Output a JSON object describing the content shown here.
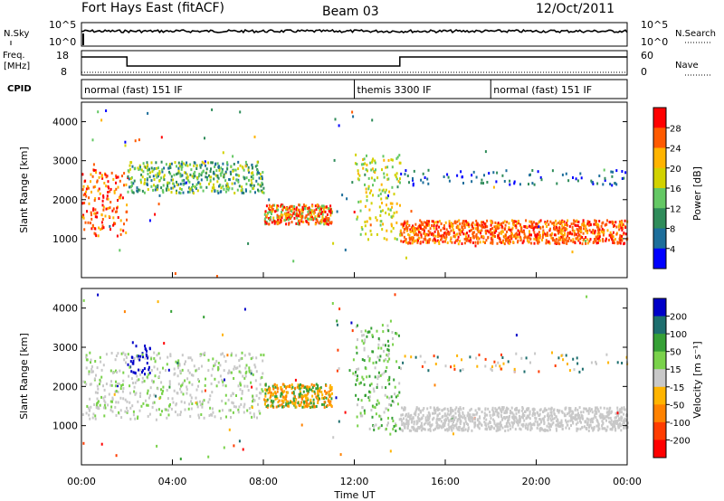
{
  "header": {
    "station": "Fort Hays East (fitACF)",
    "beam": "Beam 03",
    "date": "12/Oct/2011"
  },
  "chart_data": [
    {
      "type": "line",
      "panel": "noise",
      "left_label": "N.Sky",
      "right_label": "N.Search",
      "left_ticks": [
        "10^5",
        "10^0"
      ],
      "right_ticks": [
        "10^5",
        "10^0"
      ]
    },
    {
      "type": "line",
      "panel": "frequency",
      "left_label_line1": "Freq.",
      "left_label_line2": "[MHz]",
      "right_label": "Nave",
      "left_ticks": [
        "18",
        "8"
      ],
      "right_ticks": [
        "60",
        "0"
      ],
      "freq_steps": [
        {
          "start_hour": 0,
          "end_hour": 2,
          "level": "high"
        },
        {
          "start_hour": 2,
          "end_hour": 14,
          "level": "low"
        },
        {
          "start_hour": 14,
          "end_hour": 24,
          "level": "high"
        }
      ]
    },
    {
      "type": "table",
      "panel": "cpid",
      "label": "CPID",
      "segments": [
        {
          "start_hour": 0,
          "end_hour": 12,
          "text": "normal (fast) 151 IF"
        },
        {
          "start_hour": 12,
          "end_hour": 18,
          "text": "themis 3300 IF"
        },
        {
          "start_hour": 18,
          "end_hour": 24,
          "text": "normal (fast) 151 IF"
        }
      ]
    },
    {
      "type": "heatmap",
      "panel": "power",
      "ylabel": "Slant Range [km]",
      "ylim": [
        0,
        4500
      ],
      "y_ticks": [
        "4000",
        "3000",
        "2000",
        "1000"
      ],
      "colorbar_label": "Power [dB]",
      "colorbar_ticks": [
        "28",
        "24",
        "20",
        "16",
        "12",
        "8",
        "4"
      ],
      "colorbar_colors": [
        "#ff0000",
        "#ff5a00",
        "#ffb400",
        "#d2d200",
        "#64c864",
        "#2f8c5a",
        "#1d6e9b",
        "#0000ff"
      ]
    },
    {
      "type": "heatmap",
      "panel": "velocity",
      "ylabel": "Slant Range [km]",
      "ylim": [
        0,
        4500
      ],
      "y_ticks": [
        "4000",
        "3000",
        "2000",
        "1000"
      ],
      "colorbar_label": "Velocity [m s⁻¹]",
      "colorbar_ticks": [
        "200",
        "100",
        "50",
        "15",
        "-15",
        "-50",
        "-100",
        "-200"
      ],
      "colorbar_colors": [
        "#0000c8",
        "#1d6e6e",
        "#35a035",
        "#7ad24b",
        "#c8c8c8",
        "#ffb400",
        "#ff8200",
        "#ff3c00",
        "#ff0000"
      ]
    }
  ],
  "x_axis": {
    "xlabel": "Time UT",
    "xlim_hours": [
      0,
      24
    ],
    "tick_labels": [
      "00:00",
      "04:00",
      "08:00",
      "12:00",
      "16:00",
      "20:00",
      "00:00"
    ]
  }
}
